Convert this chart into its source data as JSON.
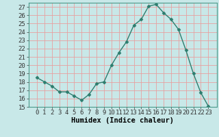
{
  "x": [
    0,
    1,
    2,
    3,
    4,
    5,
    6,
    7,
    8,
    9,
    10,
    11,
    12,
    13,
    14,
    15,
    16,
    17,
    18,
    19,
    20,
    21,
    22,
    23
  ],
  "y": [
    18.5,
    18.0,
    17.5,
    16.8,
    16.8,
    16.3,
    15.8,
    16.5,
    17.8,
    18.0,
    20.0,
    21.5,
    22.8,
    24.8,
    25.5,
    27.1,
    27.3,
    26.3,
    25.5,
    24.3,
    21.8,
    19.0,
    16.7,
    15.1
  ],
  "line_color": "#2d7d6e",
  "marker": "D",
  "marker_size": 2.5,
  "bg_color": "#c8e8e8",
  "grid_color": "#e8a0a0",
  "xlabel": "Humidex (Indice chaleur)",
  "ylim": [
    15,
    27.5
  ],
  "yticks": [
    15,
    16,
    17,
    18,
    19,
    20,
    21,
    22,
    23,
    24,
    25,
    26,
    27
  ],
  "xticks": [
    0,
    1,
    2,
    3,
    4,
    5,
    6,
    7,
    8,
    9,
    10,
    11,
    12,
    13,
    14,
    15,
    16,
    17,
    18,
    19,
    20,
    21,
    22,
    23
  ],
  "xlabel_fontsize": 7.5,
  "tick_fontsize": 6.5,
  "spine_color": "#4a9a8a"
}
